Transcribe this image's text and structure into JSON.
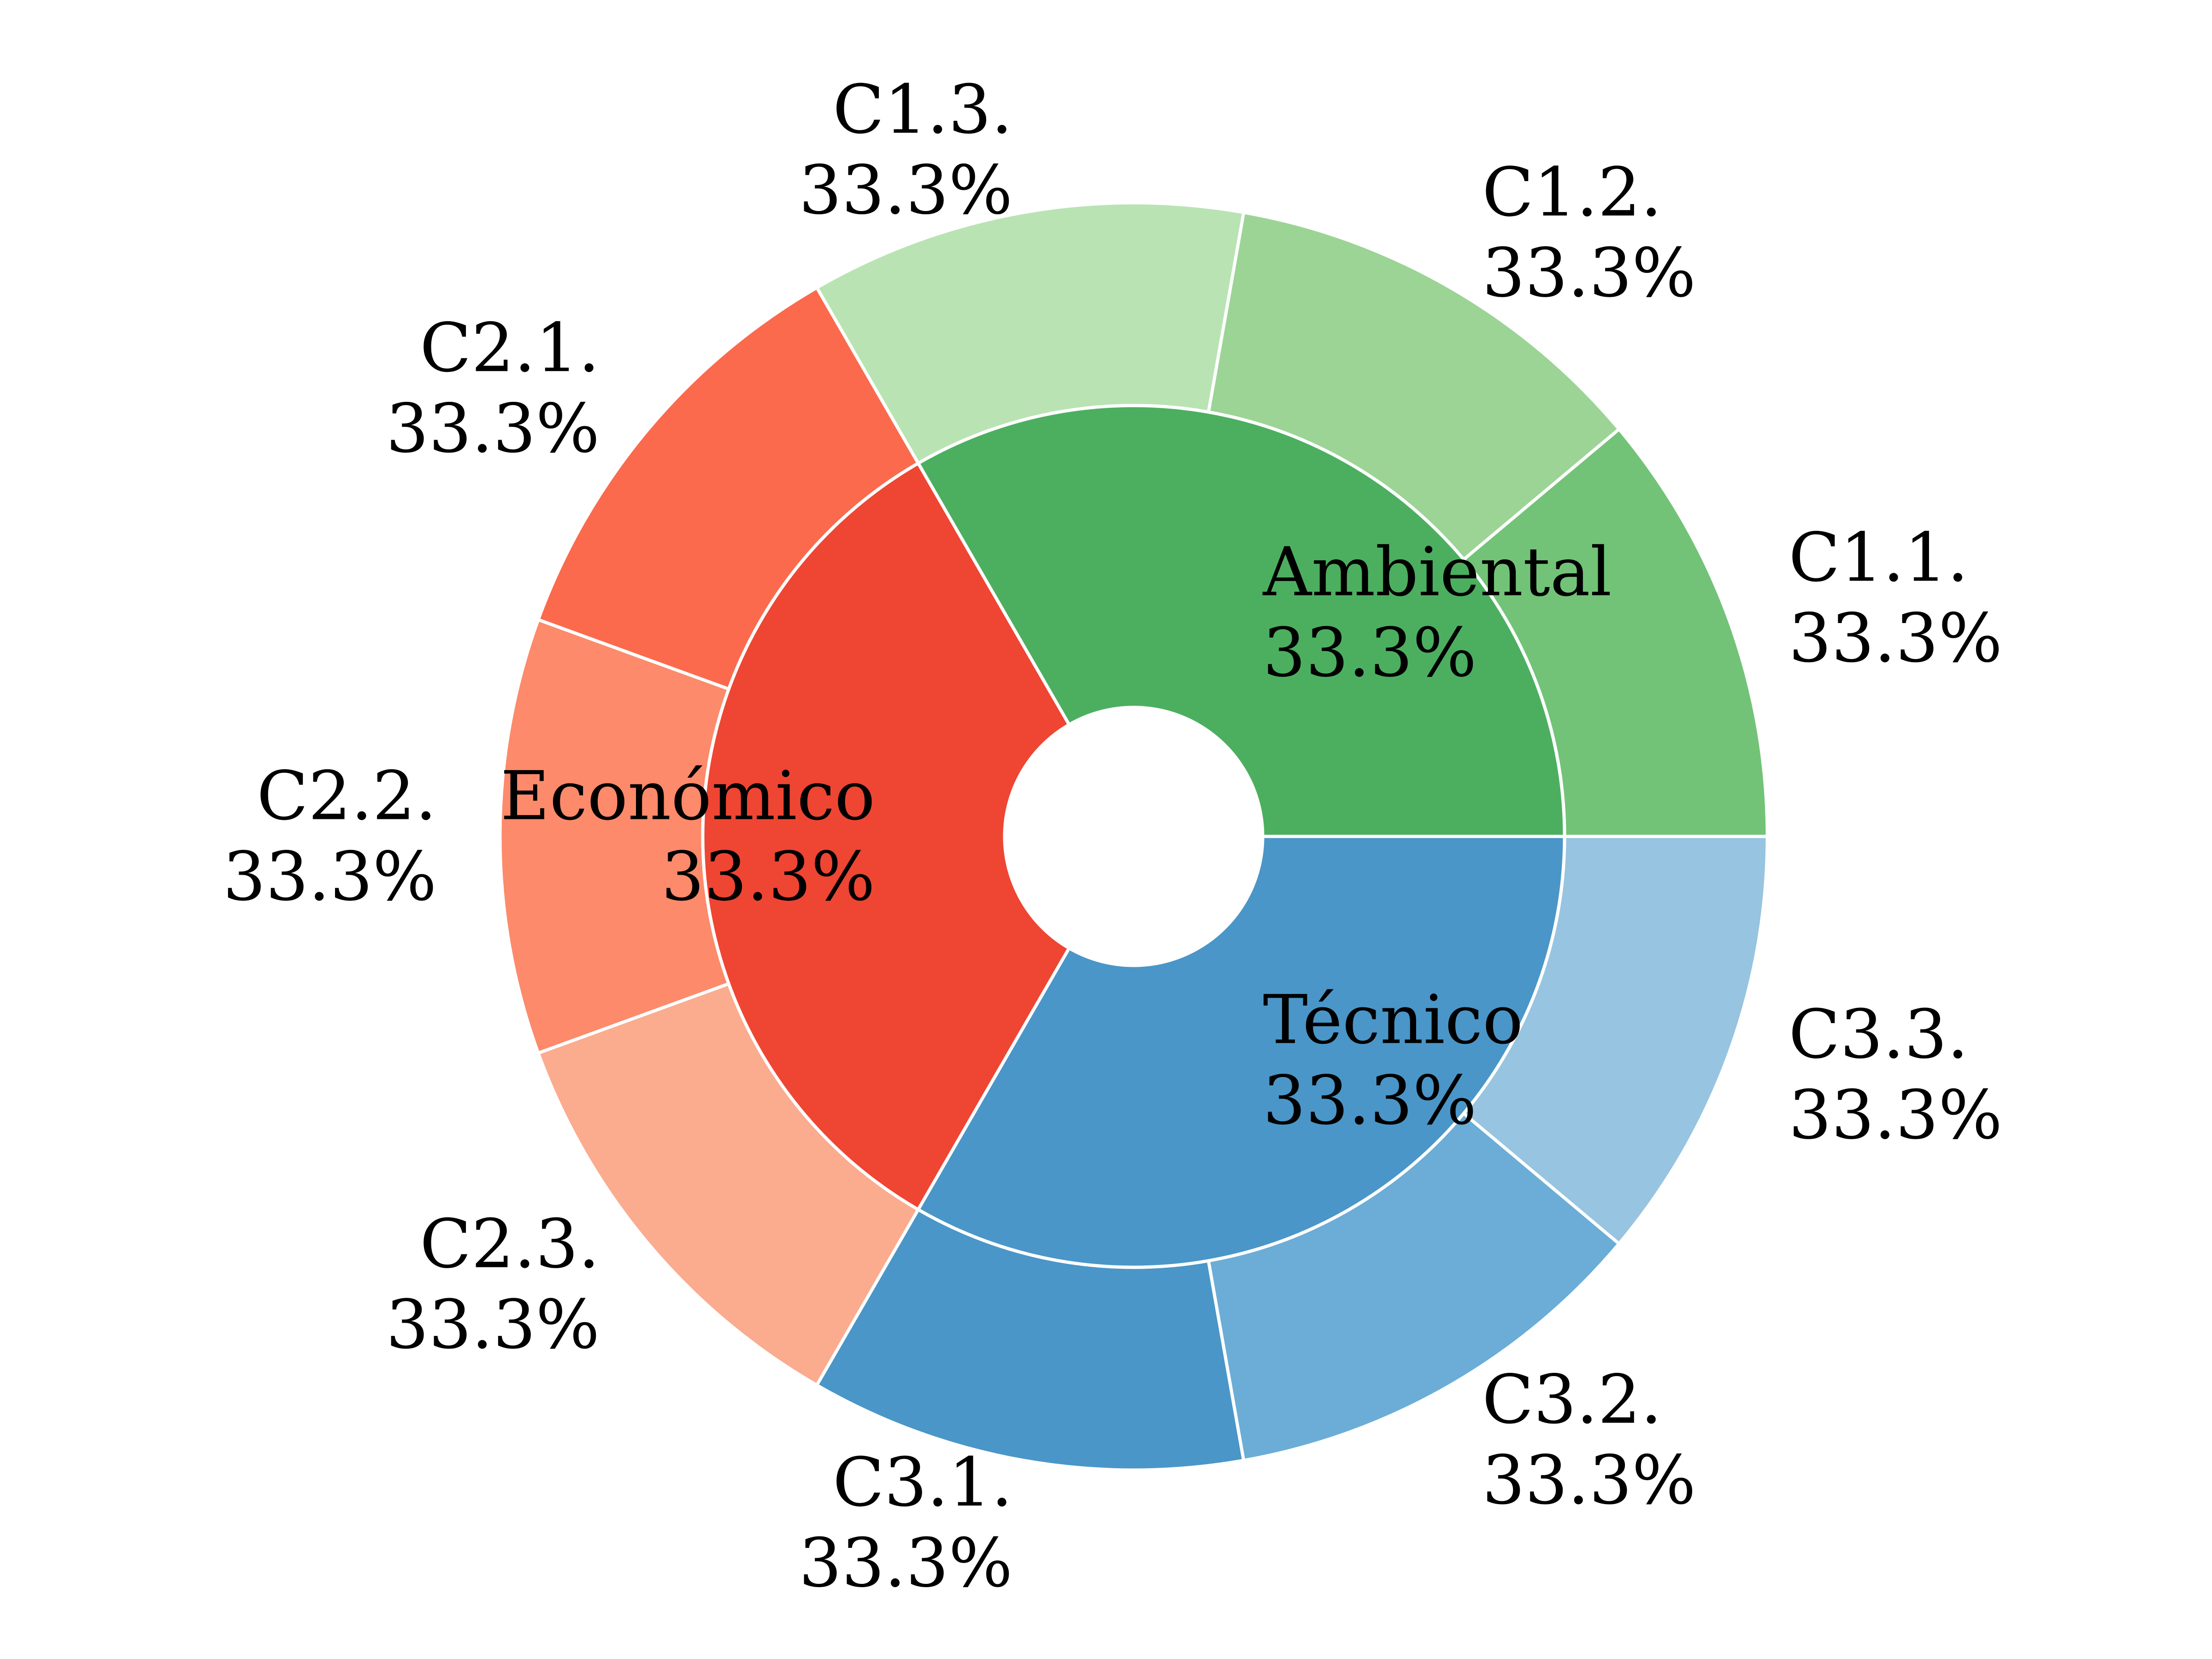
{
  "chart_data": {
    "type": "pie",
    "variant": "nested-donut",
    "title": "",
    "inner_ring": [
      {
        "label": "Ambiental",
        "pct_text": "33.3%",
        "value": 33.3,
        "color": "#4caf60"
      },
      {
        "label": "Económico",
        "pct_text": "33.3%",
        "value": 33.3,
        "color": "#ef4533"
      },
      {
        "label": "Técnico",
        "pct_text": "33.3%",
        "value": 33.3,
        "color": "#4a96c8"
      }
    ],
    "outer_ring": [
      {
        "label": "C1.1.",
        "pct_text": "33.3%",
        "value": 33.3,
        "group": "Ambiental",
        "color": "#72c377"
      },
      {
        "label": "C1.2.",
        "pct_text": "33.3%",
        "value": 33.3,
        "group": "Ambiental",
        "color": "#9bd495"
      },
      {
        "label": "C1.3.",
        "pct_text": "33.3%",
        "value": 33.3,
        "group": "Ambiental",
        "color": "#b9e3b3"
      },
      {
        "label": "C2.1.",
        "pct_text": "33.3%",
        "value": 33.3,
        "group": "Económico",
        "color": "#fb6a4d"
      },
      {
        "label": "C2.2.",
        "pct_text": "33.3%",
        "value": 33.3,
        "group": "Económico",
        "color": "#fc8a6b"
      },
      {
        "label": "C2.3.",
        "pct_text": "33.3%",
        "value": 33.3,
        "group": "Económico",
        "color": "#fbab8e"
      },
      {
        "label": "C3.1.",
        "pct_text": "33.3%",
        "value": 33.3,
        "group": "Técnico",
        "color": "#4a96c8"
      },
      {
        "label": "C3.2.",
        "pct_text": "33.3%",
        "value": 33.3,
        "group": "Técnico",
        "color": "#6badd6"
      },
      {
        "label": "C3.3.",
        "pct_text": "33.3%",
        "value": 33.3,
        "group": "Técnico",
        "color": "#97c4e0"
      }
    ],
    "start_angle_deg": 0,
    "direction": "counterclockwise",
    "edge_color": "#ffffff"
  }
}
